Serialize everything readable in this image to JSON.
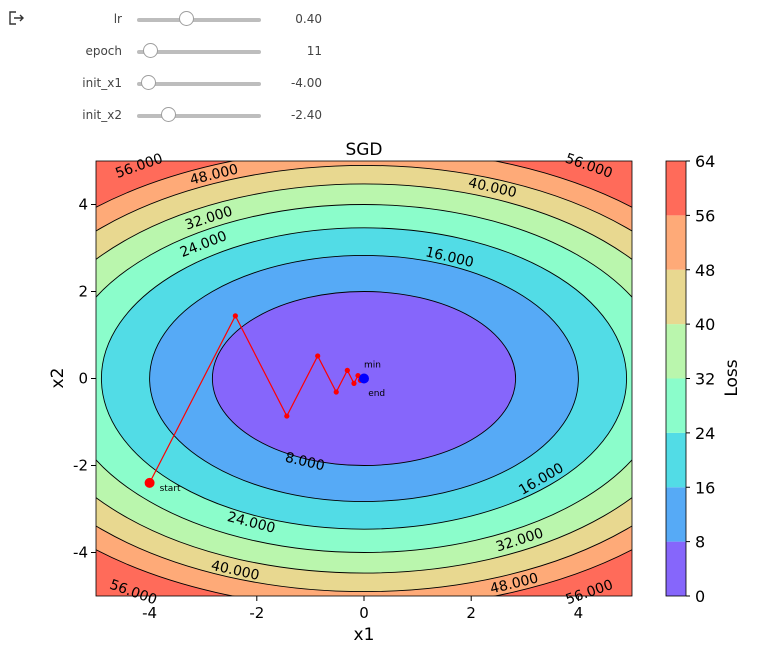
{
  "toolbar": {
    "logout_icon": "logout-icon"
  },
  "controls": [
    {
      "label": "lr",
      "value_text": "0.40",
      "fraction": 0.4
    },
    {
      "label": "epoch",
      "value_text": "11",
      "fraction": 0.11
    },
    {
      "label": "init_x1",
      "value_text": "-4.00",
      "fraction": 0.1
    },
    {
      "label": "init_x2",
      "value_text": "-2.40",
      "fraction": 0.26
    }
  ],
  "chart_data": {
    "type": "contour",
    "title": "SGD",
    "xlabel": "x1",
    "ylabel": "x2",
    "xlim": [
      -5,
      5
    ],
    "ylim": [
      -5,
      5
    ],
    "x_ticks": [
      -4,
      -2,
      0,
      2,
      4
    ],
    "y_ticks": [
      -4,
      -2,
      0,
      2,
      4
    ],
    "function": "x1^2 + 2*x2^2",
    "levels": [
      0,
      8,
      16,
      24,
      32,
      40,
      48,
      56,
      64
    ],
    "level_colors": [
      "#8666fb",
      "#56aaf6",
      "#52dce6",
      "#8bfdcb",
      "#baf6ad",
      "#e8d890",
      "#feaa78",
      "#ff6b5a"
    ],
    "contour_labels": [
      "8.000",
      "16.000",
      "24.000",
      "32.000",
      "40.000",
      "48.000",
      "56.000"
    ],
    "colorbar": {
      "label": "Loss",
      "ticks": [
        0,
        8,
        16,
        24,
        32,
        40,
        48,
        56,
        64
      ]
    },
    "trajectory": {
      "color": "#ff0000",
      "points": [
        [
          -4.0,
          -2.4
        ],
        [
          -2.4,
          1.44
        ],
        [
          -1.44,
          -0.864
        ],
        [
          -0.864,
          0.518
        ],
        [
          -0.518,
          -0.311
        ],
        [
          -0.311,
          0.187
        ],
        [
          -0.187,
          -0.112
        ],
        [
          -0.112,
          0.067
        ],
        [
          -0.067,
          -0.04
        ],
        [
          -0.04,
          0.024
        ],
        [
          -0.024,
          -0.015
        ],
        [
          -0.015,
          0.009
        ]
      ]
    },
    "annotations": [
      {
        "text": "start",
        "x": -4.0,
        "y": -2.4
      },
      {
        "text": "min",
        "x": 0.0,
        "y": 0.0
      },
      {
        "text": "end",
        "x": -0.015,
        "y": 0.009
      }
    ],
    "min_marker_color": "#0000ff"
  }
}
